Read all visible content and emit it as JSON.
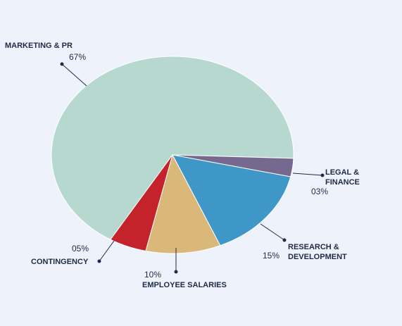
{
  "chart_data": {
    "type": "pie",
    "categories": [
      "MARKETING & PR",
      "LEGAL & FINANCE",
      "RESEARCH & DEVELOPMENT",
      "EMPLOYEE SALARIES",
      "CONTINGENCY"
    ],
    "values": [
      67,
      3,
      15,
      10,
      5
    ],
    "value_labels": [
      "67%",
      "03%",
      "15%",
      "10%",
      "05%"
    ],
    "colors": [
      "#b7d8cf",
      "#76688f",
      "#3f97c7",
      "#d9b87a",
      "#c4232b"
    ]
  }
}
